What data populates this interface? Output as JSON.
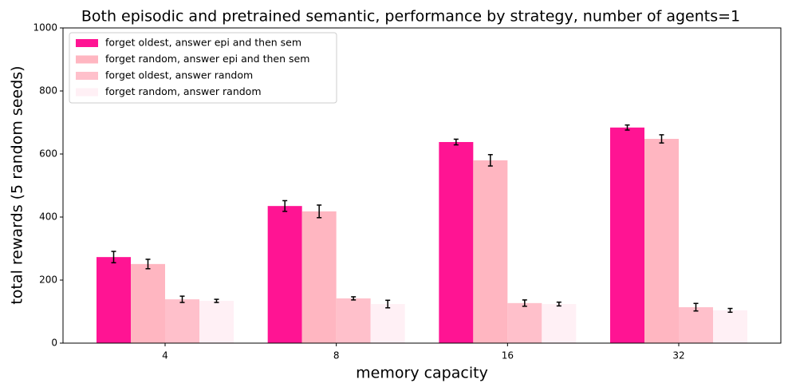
{
  "chart_data": {
    "type": "bar",
    "title": "Both episodic and pretrained semantic, performance by strategy, number of agents=1",
    "x_label": "memory capacity",
    "y_label": "total rewards (5 random seeds)",
    "categories": [
      "4",
      "8",
      "16",
      "32"
    ],
    "series": [
      {
        "name": "forget oldest, answer epi and then sem",
        "color": "#ff1493",
        "values": [
          273,
          435,
          638,
          684
        ],
        "errors": [
          18,
          17,
          9,
          8
        ]
      },
      {
        "name": "forget random, answer epi and then sem",
        "color": "#ffb6c1",
        "values": [
          251,
          418,
          580,
          648
        ],
        "errors": [
          15,
          20,
          18,
          13
        ]
      },
      {
        "name": "forget oldest, answer random",
        "color": "#ffc0cb",
        "values": [
          139,
          142,
          127,
          114
        ],
        "errors": [
          10,
          5,
          10,
          12
        ]
      },
      {
        "name": "forget random, answer random",
        "color": "#fff0f5",
        "values": [
          134,
          124,
          124,
          104
        ],
        "errors": [
          5,
          12,
          6,
          6
        ]
      }
    ],
    "ylim": [
      0,
      1000
    ],
    "yticks": [
      0,
      200,
      400,
      600,
      800,
      1000
    ],
    "legend": "upper-left"
  }
}
